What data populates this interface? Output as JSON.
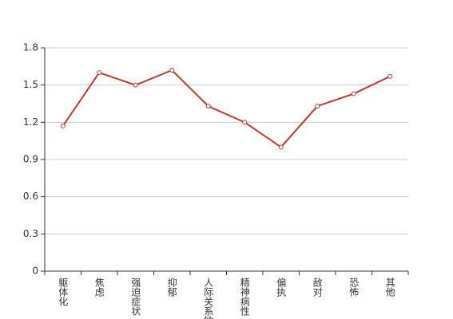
{
  "chart_data": {
    "type": "line",
    "categories": [
      "躯体化",
      "焦虑",
      "强迫症状",
      "抑郁",
      "人际关系敏感",
      "精神病性",
      "偏执",
      "敌对",
      "恐怖",
      "其他"
    ],
    "values": [
      1.17,
      1.6,
      1.5,
      1.62,
      1.33,
      1.2,
      1.0,
      1.33,
      1.43,
      1.57
    ],
    "color": "#c0392b",
    "ylim": [
      0,
      1.8
    ],
    "yticks": [
      0,
      0.3,
      0.6,
      0.9,
      1.2,
      1.5,
      1.8
    ],
    "grid": true
  }
}
